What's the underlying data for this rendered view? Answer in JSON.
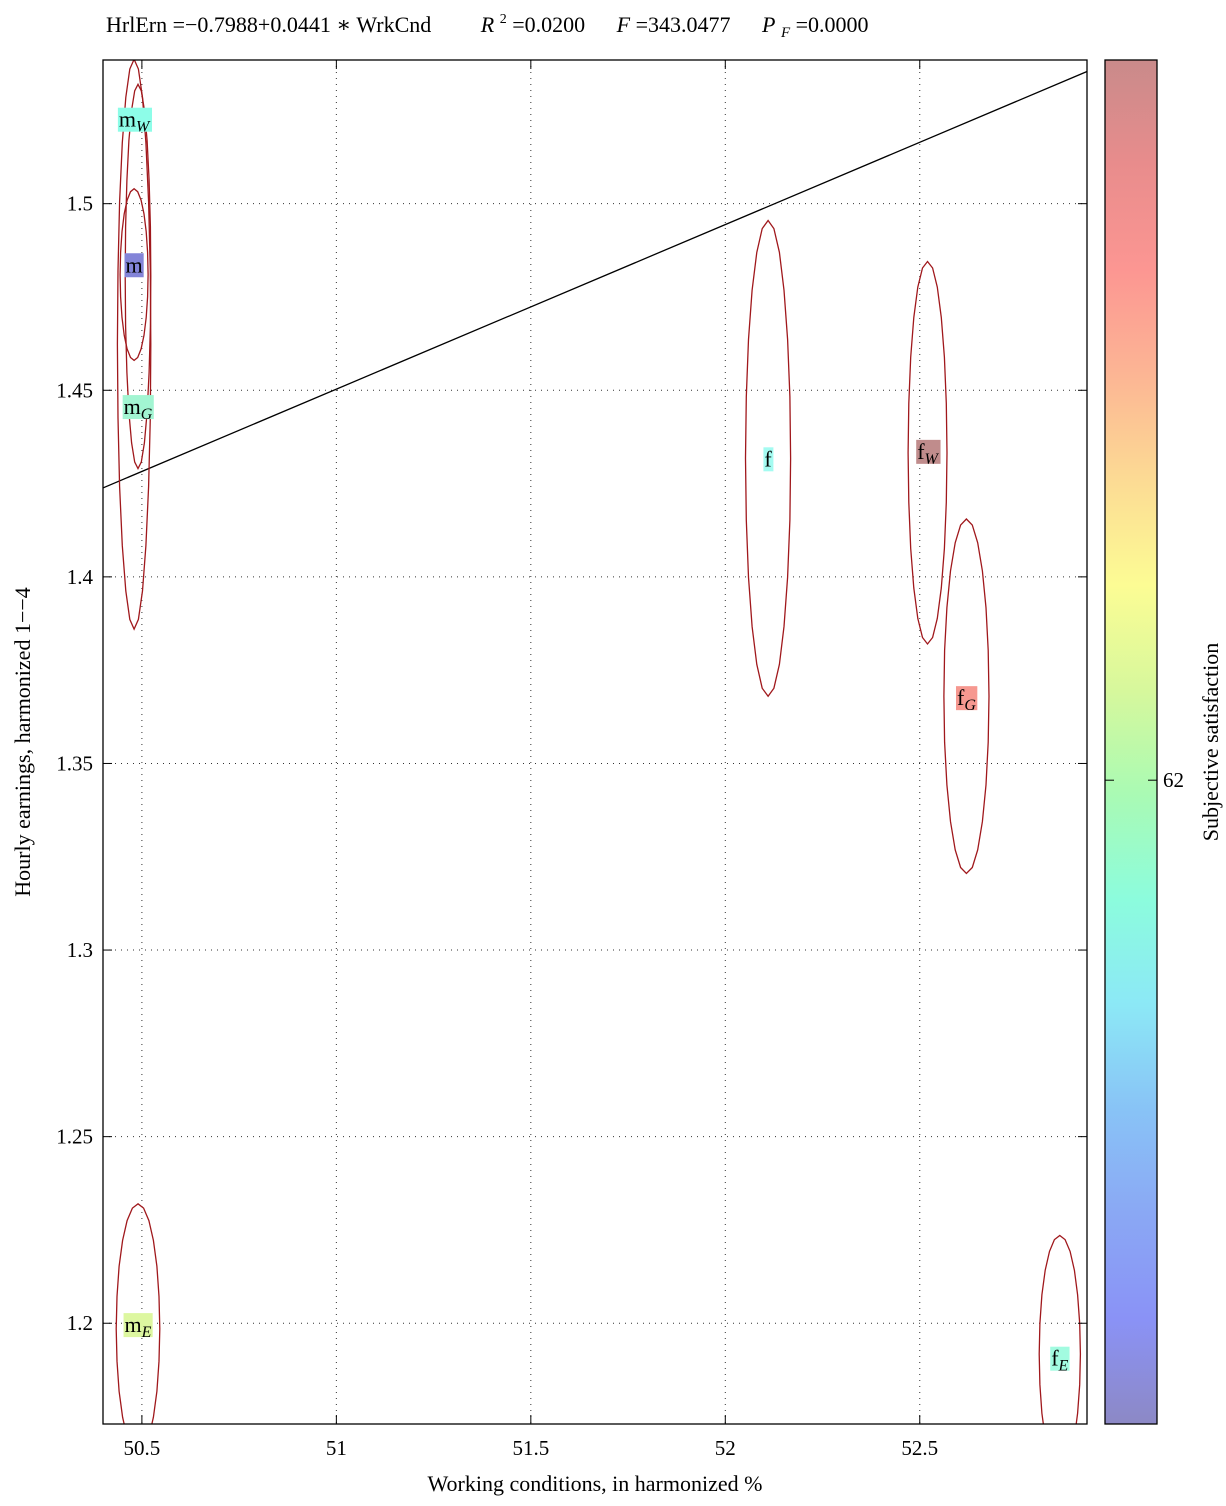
{
  "chart_data": {
    "type": "scatter",
    "title": {
      "equation": "HrlErn =−0.7988+0.0441 ∗ WrkCnd",
      "r2_symbol": "R",
      "r2_sup": "2",
      "r2_value": " =0.0200",
      "f_symbol": "F",
      "f_value": " =343.0477",
      "pf_symbol": "P",
      "pf_sub": "F",
      "pf_value": " =0.0000"
    },
    "xlabel": "Working conditions, in harmonized %",
    "ylabel": "Hourly earnings, harmonized 1−−4",
    "colorbar_label": "Subjective satisfaction",
    "xlim": [
      50.4,
      52.93
    ],
    "ylim": [
      1.173,
      1.5385
    ],
    "x_ticks": [
      50.5,
      51,
      51.5,
      52,
      52.5
    ],
    "x_tick_labels": [
      "50.5",
      "51",
      "51.5",
      "52",
      "52.5"
    ],
    "y_ticks": [
      1.2,
      1.25,
      1.3,
      1.35,
      1.4,
      1.45,
      1.5
    ],
    "y_tick_labels": [
      "1.2",
      "1.25",
      "1.3",
      "1.35",
      "1.4",
      "1.45",
      "1.5"
    ],
    "colorbar_ticks": [
      {
        "label": "62",
        "position": 0.472
      }
    ],
    "grid": true,
    "regression_line": {
      "intercept": -0.7988,
      "slope": 0.0441
    },
    "points": [
      {
        "base": "m",
        "sub": "W",
        "x": 50.48,
        "y": 1.5225,
        "color": "#8dfde8",
        "ellipse": {
          "rx": 0.043,
          "y_top": 1.5387,
          "y_bottom": 1.386
        }
      },
      {
        "base": "m",
        "sub": "",
        "x": 50.48,
        "y": 1.4835,
        "color": "#8384d8",
        "ellipse": {
          "rx": 0.036,
          "y_top": 1.504,
          "y_bottom": 1.458
        }
      },
      {
        "base": "m",
        "sub": "G",
        "x": 50.49,
        "y": 1.4455,
        "color": "#a2f5d2",
        "ellipse": {
          "rx": 0.033,
          "y_top": 1.532,
          "y_bottom": 1.429
        }
      },
      {
        "base": "m",
        "sub": "E",
        "x": 50.49,
        "y": 1.1995,
        "color": "#ddf7a0",
        "ellipse": {
          "rx": 0.056,
          "y_top": 1.232,
          "y_bottom": 1.165
        }
      },
      {
        "base": "f",
        "sub": "",
        "x": 52.11,
        "y": 1.4315,
        "color": "#a4fbf1",
        "ellipse": {
          "rx": 0.058,
          "y_top": 1.4955,
          "y_bottom": 1.368
        }
      },
      {
        "base": "f",
        "sub": "W",
        "x": 52.52,
        "y": 1.4335,
        "color": "#c08c8c",
        "ellipse": {
          "rx": 0.05,
          "y_top": 1.4845,
          "y_bottom": 1.382
        }
      },
      {
        "base": "f",
        "sub": "G",
        "x": 52.62,
        "y": 1.3675,
        "color": "#f69890",
        "ellipse": {
          "rx": 0.058,
          "y_top": 1.4155,
          "y_bottom": 1.3205
        }
      },
      {
        "base": "f",
        "sub": "E",
        "x": 52.86,
        "y": 1.1905,
        "color": "#a2fbe0",
        "ellipse": {
          "rx": 0.053,
          "y_top": 1.2235,
          "y_bottom": 1.16
        }
      }
    ],
    "colormap": [
      "#8a86c4",
      "#8890f6",
      "#88a6f4",
      "#86c2f6",
      "#8ae8f6",
      "#8afcdc",
      "#a8fab2",
      "#d6f89a",
      "#fcfc92",
      "#fcda92",
      "#fcb492",
      "#fc9490",
      "#e88a8a",
      "#c88888"
    ]
  }
}
